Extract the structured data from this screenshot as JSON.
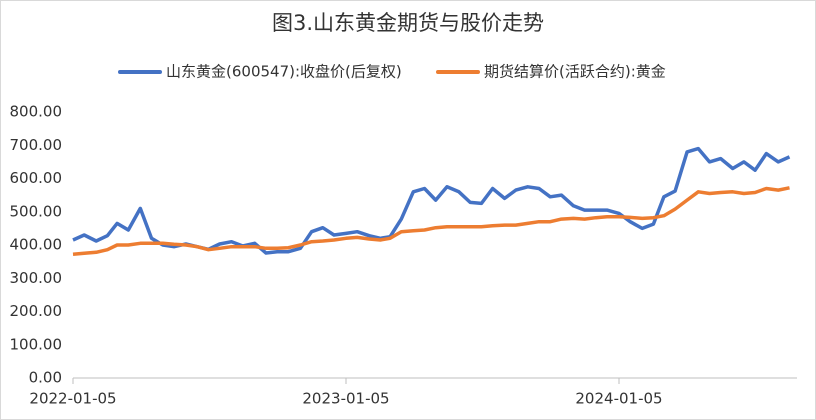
{
  "chart_data": {
    "type": "line",
    "title": "图3.山东黄金期货与股价走势",
    "x": [
      "2022-01-05",
      "2022-01-20",
      "2022-02-05",
      "2022-02-20",
      "2022-03-05",
      "2022-03-20",
      "2022-04-05",
      "2022-04-20",
      "2022-05-05",
      "2022-05-20",
      "2022-06-05",
      "2022-06-20",
      "2022-07-05",
      "2022-07-20",
      "2022-08-05",
      "2022-08-20",
      "2022-09-05",
      "2022-09-20",
      "2022-10-05",
      "2022-10-20",
      "2022-11-05",
      "2022-11-20",
      "2022-12-05",
      "2022-12-20",
      "2023-01-05",
      "2023-01-20",
      "2023-02-05",
      "2023-02-20",
      "2023-03-05",
      "2023-03-20",
      "2023-04-05",
      "2023-04-20",
      "2023-05-05",
      "2023-05-20",
      "2023-06-05",
      "2023-06-20",
      "2023-07-05",
      "2023-07-20",
      "2023-08-05",
      "2023-08-20",
      "2023-09-05",
      "2023-09-20",
      "2023-10-05",
      "2023-10-20",
      "2023-11-05",
      "2023-11-20",
      "2023-12-05",
      "2023-12-20",
      "2024-01-05",
      "2024-01-20",
      "2024-02-05",
      "2024-02-20",
      "2024-03-05",
      "2024-03-20",
      "2024-04-05",
      "2024-04-20",
      "2024-05-05",
      "2024-05-20",
      "2024-06-05",
      "2024-06-20",
      "2024-07-05",
      "2024-07-20",
      "2024-08-05",
      "2024-08-20"
    ],
    "series": [
      {
        "name": "山东黄金(600547):收盘价(后复权)",
        "color": "#4472c4",
        "values": [
          415,
          430,
          412,
          428,
          465,
          445,
          510,
          420,
          400,
          395,
          403,
          395,
          387,
          403,
          410,
          397,
          405,
          376,
          380,
          380,
          390,
          440,
          452,
          430,
          435,
          440,
          428,
          420,
          425,
          478,
          560,
          570,
          535,
          575,
          560,
          528,
          525,
          570,
          540,
          565,
          575,
          570,
          545,
          550,
          518,
          505,
          505,
          505,
          495,
          470,
          450,
          463,
          545,
          562,
          680,
          690,
          650,
          660,
          630,
          650,
          625,
          675,
          650,
          665
        ]
      },
      {
        "name": "期货结算价(活跃合约):黄金",
        "color": "#ed7d31",
        "values": [
          372,
          375,
          378,
          386,
          400,
          400,
          405,
          405,
          405,
          402,
          400,
          395,
          386,
          390,
          395,
          395,
          395,
          390,
          390,
          392,
          400,
          410,
          412,
          415,
          420,
          423,
          418,
          415,
          420,
          440,
          443,
          445,
          452,
          455,
          455,
          455,
          455,
          458,
          460,
          460,
          465,
          470,
          470,
          478,
          480,
          478,
          482,
          485,
          485,
          483,
          480,
          482,
          488,
          508,
          535,
          560,
          555,
          558,
          560,
          555,
          558,
          570,
          565,
          572
        ]
      }
    ],
    "xlim": [
      "2022-01-05",
      "2024-08-30"
    ],
    "xticks": [
      "2022-01-05",
      "2023-01-05",
      "2024-01-05"
    ],
    "ylim": [
      0,
      800
    ],
    "yticks": [
      {
        "value": 0,
        "label": "0.00"
      },
      {
        "value": 100,
        "label": "100.00"
      },
      {
        "value": 200,
        "label": "200.00"
      },
      {
        "value": 300,
        "label": "300.00"
      },
      {
        "value": 400,
        "label": "400.00"
      },
      {
        "value": 500,
        "label": "500.00"
      },
      {
        "value": 600,
        "label": "600.00"
      },
      {
        "value": 700,
        "label": "700.00"
      },
      {
        "value": 800,
        "label": "800.00"
      }
    ],
    "legend": "top"
  }
}
